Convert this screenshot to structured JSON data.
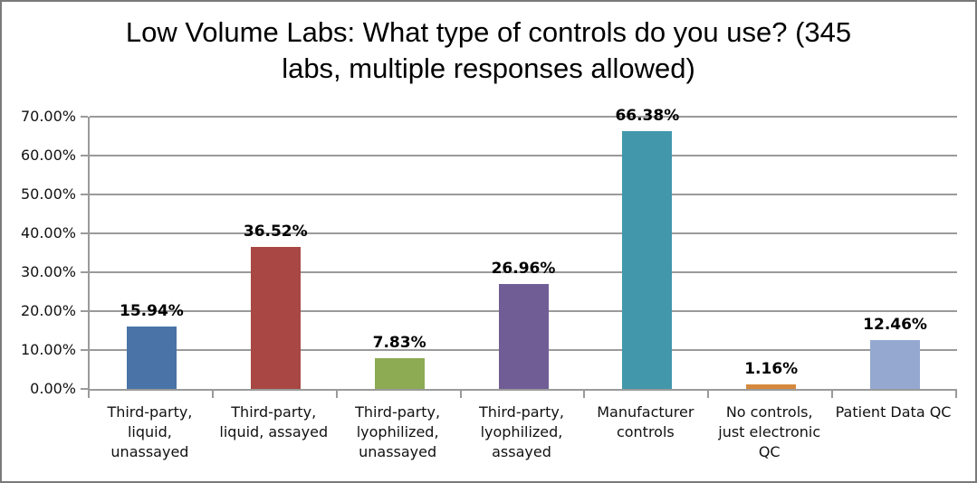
{
  "window": {
    "background_color": "#FFFFFF",
    "border_color": "#7A7A7A"
  },
  "chart_data": {
    "type": "bar",
    "title": "Low Volume Labs: What type of controls do you use? (345 labs, multiple responses allowed)",
    "categories": [
      "Third-party, liquid, unassayed",
      "Third-party, liquid, assayed",
      "Third-party, lyophilized, unassayed",
      "Third-party, lyophilized, assayed",
      "Manufacturer controls",
      "No controls, just electronic QC",
      "Patient Data QC"
    ],
    "values": [
      15.94,
      36.52,
      7.83,
      26.96,
      66.38,
      1.16,
      12.46
    ],
    "value_labels": [
      "15.94%",
      "36.52%",
      "7.83%",
      "26.96%",
      "66.38%",
      "1.16%",
      "12.46%"
    ],
    "bar_colors": [
      "#4A74A8",
      "#A84743",
      "#8CAB53",
      "#705D95",
      "#4297AB",
      "#D6883D",
      "#95A9D0"
    ],
    "xlabel": "",
    "ylabel": "",
    "ylim": [
      0,
      70
    ],
    "ytick_step": 10,
    "ytick_labels": [
      "0.00%",
      "10.00%",
      "20.00%",
      "30.00%",
      "40.00%",
      "50.00%",
      "60.00%",
      "70.00%"
    ],
    "grid": "horizontal gridlines on",
    "legend": "none",
    "gridline_color": "#9A9A9A",
    "category_lines": [
      [
        "Third-party,",
        "liquid,",
        "unassayed"
      ],
      [
        "Third-party,",
        "liquid, assayed"
      ],
      [
        "Third-party,",
        "lyophilized,",
        "unassayed"
      ],
      [
        "Third-party,",
        "lyophilized,",
        "assayed"
      ],
      [
        "Manufacturer",
        "controls"
      ],
      [
        "No controls,",
        "just electronic",
        "QC"
      ],
      [
        "Patient Data QC"
      ]
    ]
  }
}
